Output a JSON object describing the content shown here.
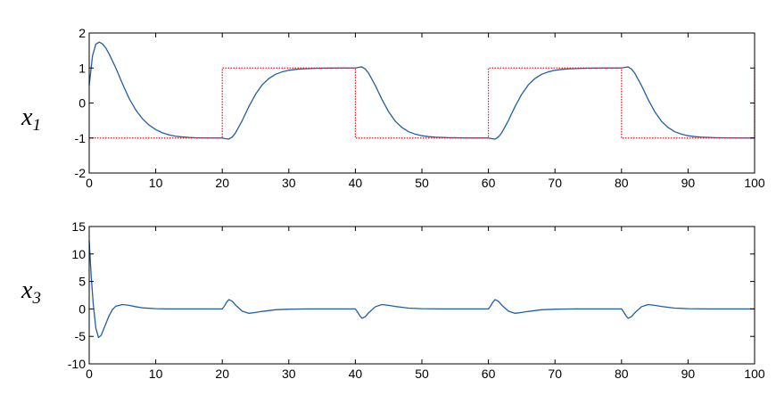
{
  "chart_data": [
    {
      "type": "line",
      "ylabel": "x",
      "ylabel_sub": "1",
      "xlabel": "",
      "xlim": [
        0,
        100
      ],
      "ylim": [
        -2,
        2
      ],
      "xticks": [
        0,
        10,
        20,
        30,
        40,
        50,
        60,
        70,
        80,
        90,
        100
      ],
      "yticks": [
        -2,
        -1,
        0,
        1,
        2
      ],
      "grid": false,
      "series": [
        {
          "color": "#1f5fa6",
          "style": "solid",
          "x": [
            0,
            0.5,
            1,
            1.5,
            2,
            2.5,
            3,
            4,
            5,
            6,
            7,
            8,
            9,
            10,
            11,
            12,
            13,
            14,
            15,
            16,
            18,
            20,
            20.5,
            21,
            21.5,
            22,
            23,
            24,
            25,
            26,
            27,
            28,
            29,
            30,
            31,
            32,
            34,
            36,
            38,
            40,
            40.5,
            41,
            41.5,
            42,
            43,
            44,
            45,
            46,
            47,
            48,
            49,
            50,
            51,
            52,
            54,
            56,
            58,
            60,
            60.5,
            61,
            61.5,
            62,
            63,
            64,
            65,
            66,
            67,
            68,
            69,
            70,
            71,
            72,
            74,
            76,
            78,
            80,
            80.5,
            81,
            81.5,
            82,
            83,
            84,
            85,
            86,
            87,
            88,
            89,
            90,
            91,
            92,
            94,
            96,
            98,
            100
          ],
          "y": [
            0.5,
            1.35,
            1.68,
            1.74,
            1.69,
            1.57,
            1.4,
            1.0,
            0.55,
            0.13,
            -0.2,
            -0.45,
            -0.63,
            -0.76,
            -0.85,
            -0.91,
            -0.95,
            -0.97,
            -0.985,
            -0.993,
            -1.0,
            -1.0,
            -1.02,
            -1.03,
            -0.97,
            -0.85,
            -0.5,
            -0.1,
            0.25,
            0.52,
            0.7,
            0.82,
            0.89,
            0.935,
            0.96,
            0.975,
            0.99,
            0.997,
            1.0,
            1.0,
            1.02,
            1.03,
            0.97,
            0.85,
            0.5,
            0.1,
            -0.25,
            -0.52,
            -0.7,
            -0.82,
            -0.89,
            -0.935,
            -0.96,
            -0.975,
            -0.99,
            -0.997,
            -1.0,
            -1.0,
            -1.02,
            -1.03,
            -0.97,
            -0.85,
            -0.5,
            -0.1,
            0.25,
            0.52,
            0.7,
            0.82,
            0.89,
            0.935,
            0.96,
            0.975,
            0.99,
            0.997,
            1.0,
            1.0,
            1.02,
            1.03,
            0.97,
            0.85,
            0.5,
            0.1,
            -0.25,
            -0.52,
            -0.7,
            -0.82,
            -0.89,
            -0.935,
            -0.96,
            -0.975,
            -0.99,
            -0.997,
            -1.0,
            -1.0
          ]
        },
        {
          "color": "#e8141e",
          "style": "dotted",
          "x": [
            0,
            20,
            20,
            40,
            40,
            60,
            60,
            80,
            80,
            100,
            100
          ],
          "y": [
            -1,
            -1,
            1,
            1,
            -1,
            -1,
            1,
            1,
            -1,
            -1,
            1
          ]
        }
      ]
    },
    {
      "type": "line",
      "ylabel": "x",
      "ylabel_sub": "3",
      "xlabel": "",
      "xlim": [
        0,
        100
      ],
      "ylim": [
        -10,
        15
      ],
      "xticks": [
        0,
        10,
        20,
        30,
        40,
        50,
        60,
        70,
        80,
        90,
        100
      ],
      "yticks": [
        -10,
        -5,
        0,
        5,
        10,
        15
      ],
      "grid": false,
      "series": [
        {
          "color": "#1f5fa6",
          "style": "solid",
          "x": [
            0,
            0.3,
            0.6,
            1,
            1.4,
            1.8,
            2.3,
            3,
            3.5,
            4,
            5,
            6,
            7,
            8,
            10,
            12,
            15,
            18,
            20,
            20.3,
            20.7,
            21,
            21.5,
            22,
            23,
            24,
            25,
            26,
            28,
            30,
            33,
            36,
            40,
            40.3,
            40.7,
            41,
            41.5,
            42,
            43,
            44,
            45,
            46,
            48,
            50,
            53,
            56,
            60,
            60.3,
            60.7,
            61,
            61.5,
            62,
            63,
            64,
            65,
            66,
            68,
            70,
            73,
            76,
            80,
            80.3,
            80.7,
            81,
            81.5,
            82,
            83,
            84,
            85,
            86,
            88,
            90,
            93,
            96,
            100
          ],
          "y": [
            12.5,
            6,
            1,
            -3.5,
            -5.2,
            -4.8,
            -3.3,
            -1.2,
            -0.1,
            0.5,
            0.8,
            0.65,
            0.4,
            0.2,
            0.05,
            0,
            0,
            0,
            0,
            0.5,
            1.3,
            1.7,
            1.4,
            0.7,
            -0.4,
            -0.8,
            -0.65,
            -0.45,
            -0.15,
            -0.05,
            0,
            0,
            0,
            -0.5,
            -1.3,
            -1.7,
            -1.4,
            -0.7,
            0.4,
            0.8,
            0.65,
            0.45,
            0.15,
            0.05,
            0,
            0,
            0,
            0.5,
            1.3,
            1.7,
            1.4,
            0.7,
            -0.4,
            -0.8,
            -0.65,
            -0.45,
            -0.15,
            -0.05,
            0,
            0,
            0,
            -0.5,
            -1.3,
            -1.7,
            -1.4,
            -0.7,
            0.4,
            0.8,
            0.65,
            0.45,
            0.15,
            0.05,
            0,
            0,
            0
          ]
        }
      ]
    }
  ]
}
